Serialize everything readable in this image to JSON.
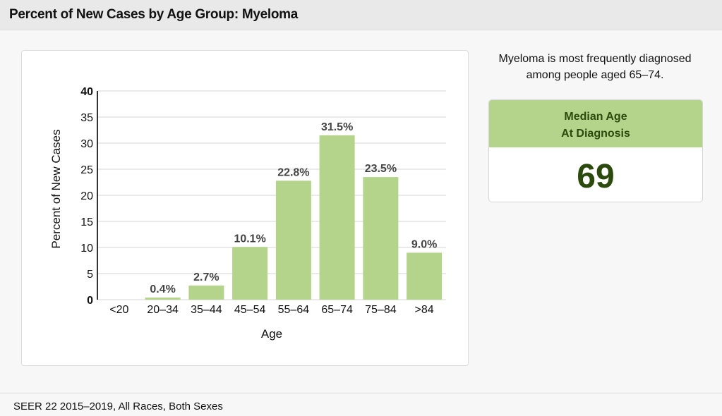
{
  "header": {
    "title": "Percent of New Cases by Age Group: Myeloma"
  },
  "summary": {
    "text": "Myeloma is most frequently diagnosed among people aged 65–74."
  },
  "median": {
    "label_line1": "Median Age",
    "label_line2": "At Diagnosis",
    "value": "69"
  },
  "footer": {
    "text": "SEER 22 2015–2019, All Races, Both Sexes"
  },
  "colors": {
    "bar": "#b3d48a",
    "accent_dark": "#2d4a0e"
  },
  "chart_data": {
    "type": "bar",
    "title": "",
    "xlabel": "Age",
    "ylabel": "Percent of New Cases",
    "ylim": [
      0,
      40
    ],
    "yticks": [
      0,
      5,
      10,
      15,
      20,
      25,
      30,
      35,
      40
    ],
    "grid": true,
    "categories": [
      "<20",
      "20–34",
      "35–44",
      "45–54",
      "55–64",
      "65–74",
      "75–84",
      ">84"
    ],
    "values": [
      0,
      0.4,
      2.7,
      10.1,
      22.8,
      31.5,
      23.5,
      9.0
    ],
    "data_labels": [
      "",
      "0.4%",
      "2.7%",
      "10.1%",
      "22.8%",
      "31.5%",
      "23.5%",
      "9.0%"
    ]
  }
}
